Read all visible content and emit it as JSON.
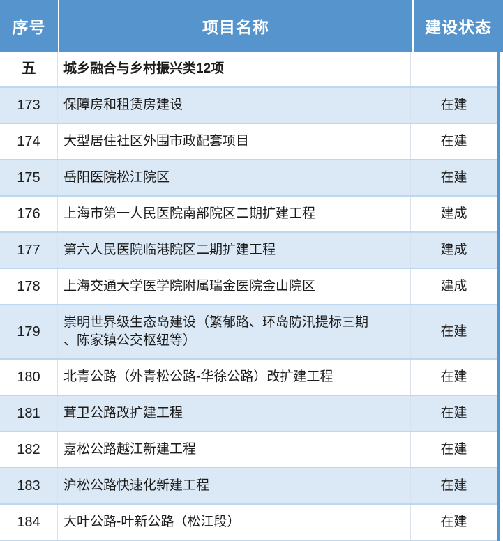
{
  "table": {
    "columns": [
      {
        "label": "序号"
      },
      {
        "label": "项目名称"
      },
      {
        "label": "建设状态"
      }
    ],
    "section": {
      "index": "五",
      "title": "城乡融合与乡村振兴类12项",
      "status": ""
    },
    "rows": [
      {
        "index": "173",
        "name": "保障房和租赁房建设",
        "status": "在建"
      },
      {
        "index": "174",
        "name": "大型居住社区外围市政配套项目",
        "status": "在建"
      },
      {
        "index": "175",
        "name": "岳阳医院松江院区",
        "status": "在建"
      },
      {
        "index": "176",
        "name": "上海市第一人民医院南部院区二期扩建工程",
        "status": "建成"
      },
      {
        "index": "177",
        "name": "第六人民医院临港院区二期扩建工程",
        "status": "建成"
      },
      {
        "index": "178",
        "name": "上海交通大学医学院附属瑞金医院金山院区",
        "status": "建成"
      },
      {
        "index": "179",
        "name": "崇明世界级生态岛建设（繁郁路、环岛防汛提标三期\n、陈家镇公交枢纽等）",
        "status": "在建",
        "tall": true
      },
      {
        "index": "180",
        "name": "北青公路（外青松公路-华徐公路）改扩建工程",
        "status": "在建"
      },
      {
        "index": "181",
        "name": "茸卫公路改扩建工程",
        "status": "在建"
      },
      {
        "index": "182",
        "name": "嘉松公路越江新建工程",
        "status": "在建"
      },
      {
        "index": "183",
        "name": "沪松公路快速化新建工程",
        "status": "在建"
      },
      {
        "index": "184",
        "name": "大叶公路-叶新公路（松江段）",
        "status": "在建"
      }
    ],
    "colors": {
      "header_bg": "#5594cd",
      "band_bg": "#dbe8f5",
      "row_border": "#bdd7ee",
      "header_text": "#ffffff"
    }
  }
}
